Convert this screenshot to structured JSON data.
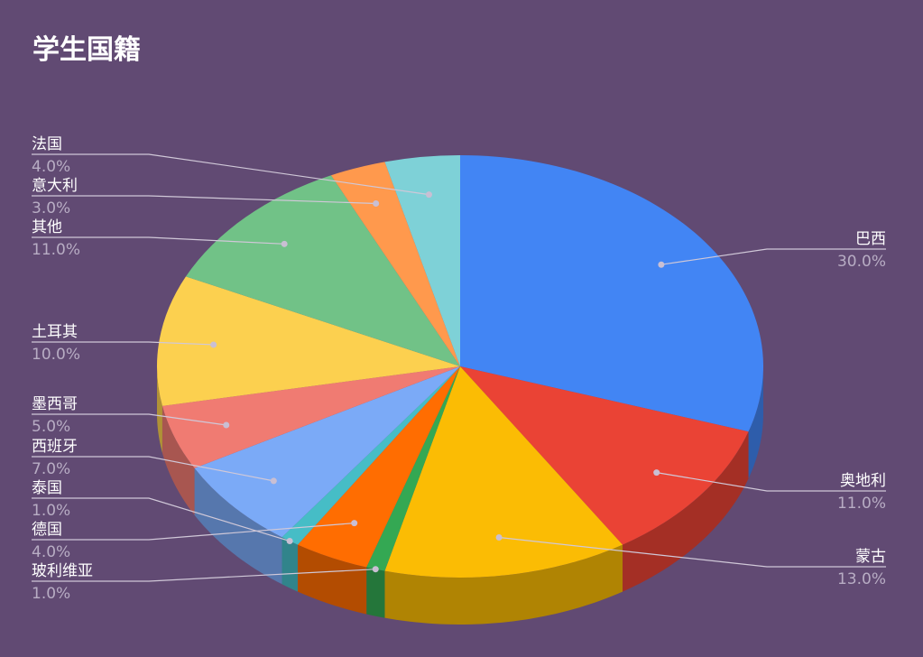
{
  "chart_data": {
    "type": "pie",
    "style": "3d",
    "title": "学生国籍",
    "legend": "labeled",
    "start_angle": "top, clockwise",
    "slices": [
      {
        "label": "巴西",
        "value": 30.0,
        "pct": "30.0%",
        "color": "#4285f4"
      },
      {
        "label": "奥地利",
        "value": 11.0,
        "pct": "11.0%",
        "color": "#ea4335"
      },
      {
        "label": "蒙古",
        "value": 13.0,
        "pct": "13.0%",
        "color": "#fbbc04"
      },
      {
        "label": "玻利维亚",
        "value": 1.0,
        "pct": "1.0%",
        "color": "#34a853"
      },
      {
        "label": "德国",
        "value": 4.0,
        "pct": "4.0%",
        "color": "#ff6d01"
      },
      {
        "label": "泰国",
        "value": 1.0,
        "pct": "1.0%",
        "color": "#46bdc6"
      },
      {
        "label": "西班牙",
        "value": 7.0,
        "pct": "7.0%",
        "color": "#7baaf7"
      },
      {
        "label": "墨西哥",
        "value": 5.0,
        "pct": "5.0%",
        "color": "#f07b72"
      },
      {
        "label": "土耳其",
        "value": 10.0,
        "pct": "10.0%",
        "color": "#fcd04f"
      },
      {
        "label": "其他",
        "value": 11.0,
        "pct": "11.0%",
        "color": "#71c287"
      },
      {
        "label": "意大利",
        "value": 3.0,
        "pct": "3.0%",
        "color": "#ff994d"
      },
      {
        "label": "法国",
        "value": 4.0,
        "pct": "4.0%",
        "color": "#7ed1d7"
      }
    ]
  }
}
